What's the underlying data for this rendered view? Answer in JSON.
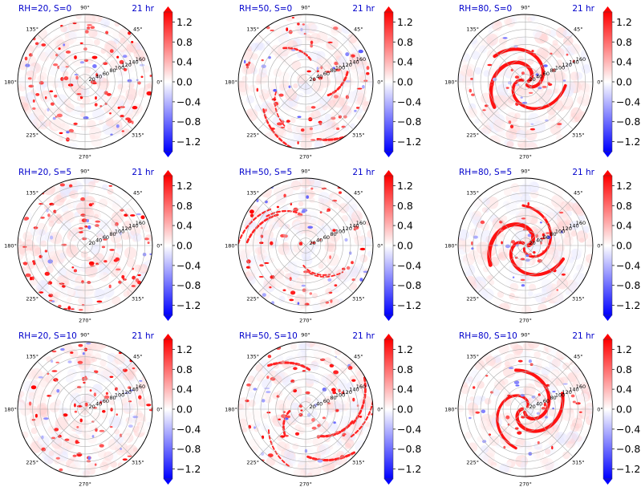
{
  "chart_data": {
    "type": "polar-heatmap-grid",
    "colormap": {
      "name": "bwr",
      "vmin": -1.4,
      "vmax": 1.4,
      "ticks": [
        "1.2",
        "0.8",
        "0.4",
        "0.0",
        "−0.4",
        "−0.8",
        "−1.2"
      ],
      "tick_values": [
        1.2,
        0.8,
        0.4,
        0.0,
        -0.4,
        -0.8,
        -1.2
      ],
      "colors": {
        "low": "#0000ff",
        "mid": "#ffffff",
        "high": "#ff0000"
      },
      "extend": "both"
    },
    "angle_labels": [
      "0°",
      "45°",
      "90°",
      "135°",
      "180°",
      "225°",
      "270°",
      "315°"
    ],
    "angle_values": [
      0,
      45,
      90,
      135,
      180,
      225,
      270,
      315
    ],
    "radial_labels": [
      "20",
      "40",
      "60",
      "80",
      "100",
      "120",
      "140",
      "160"
    ],
    "radial_values": [
      20,
      40,
      60,
      80,
      100,
      120,
      140,
      160
    ],
    "rmax": 180,
    "panels": [
      {
        "title": "RH=20, S=0",
        "time": "21 hr",
        "pattern": "scattered",
        "seed": 11
      },
      {
        "title": "RH=50, S=0",
        "time": "21 hr",
        "pattern": "bands",
        "seed": 23
      },
      {
        "title": "RH=80, S=0",
        "time": "21 hr",
        "pattern": "spiral",
        "seed": 37
      },
      {
        "title": "RH=20, S=5",
        "time": "21 hr",
        "pattern": "scattered",
        "seed": 41
      },
      {
        "title": "RH=50, S=5",
        "time": "21 hr",
        "pattern": "bands",
        "seed": 53
      },
      {
        "title": "RH=80, S=5",
        "time": "21 hr",
        "pattern": "spiral",
        "seed": 67
      },
      {
        "title": "RH=20, S=10",
        "time": "21 hr",
        "pattern": "scattered",
        "seed": 71
      },
      {
        "title": "RH=50, S=10",
        "time": "21 hr",
        "pattern": "bands",
        "seed": 83
      },
      {
        "title": "RH=80, S=10",
        "time": "21 hr",
        "pattern": "spiral",
        "seed": 97
      }
    ]
  }
}
